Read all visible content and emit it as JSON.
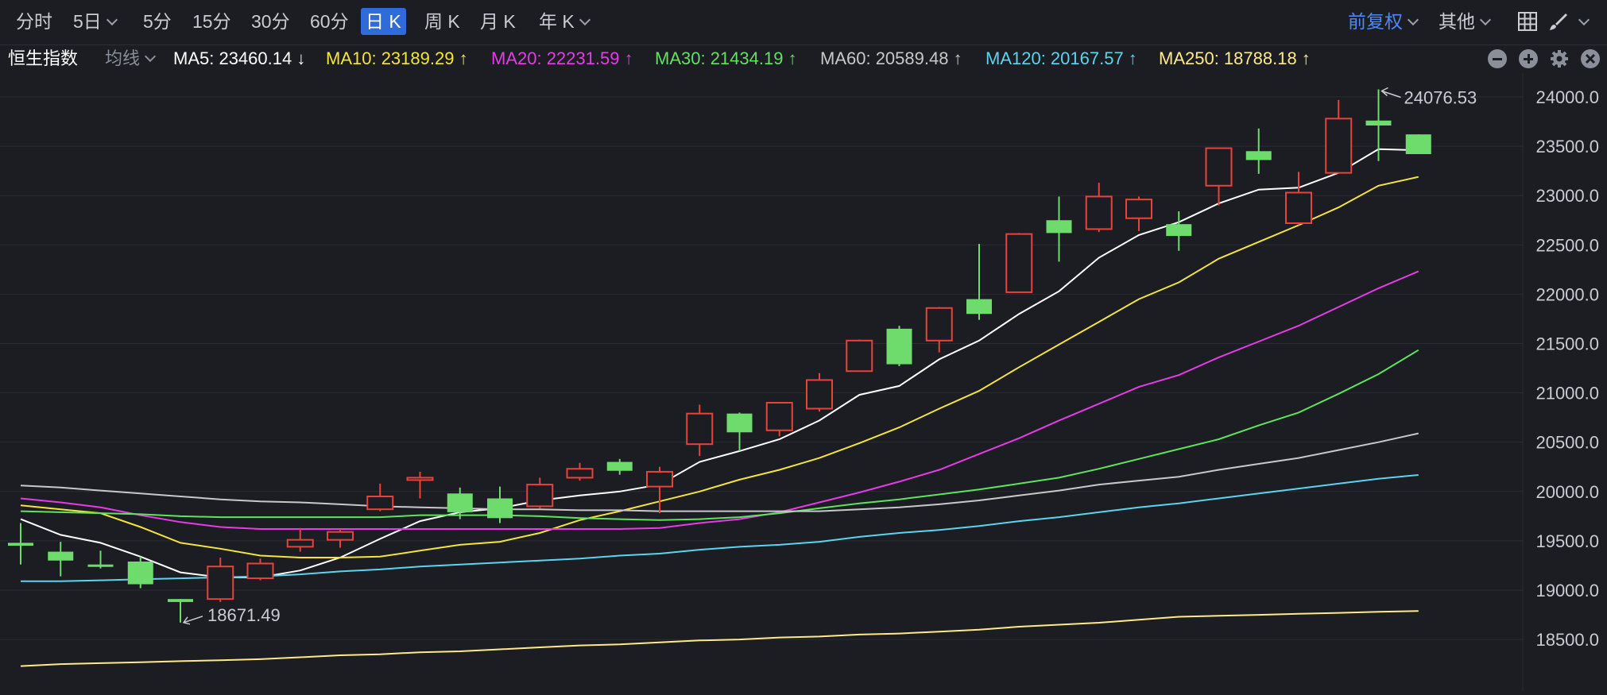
{
  "toolbar": {
    "periods": [
      {
        "label": "分时",
        "active": false,
        "caret": false
      },
      {
        "label": "5日",
        "active": false,
        "caret": true
      },
      {
        "label": "5分",
        "active": false,
        "caret": false
      },
      {
        "label": "15分",
        "active": false,
        "caret": false
      },
      {
        "label": "30分",
        "active": false,
        "caret": false
      },
      {
        "label": "60分",
        "active": false,
        "caret": false
      },
      {
        "label": "日 K",
        "active": true,
        "caret": false
      },
      {
        "label": "周 K",
        "active": false,
        "caret": false
      },
      {
        "label": "月 K",
        "active": false,
        "caret": false
      },
      {
        "label": "年 K",
        "active": false,
        "caret": true
      }
    ],
    "adjust_label": "前复权",
    "other_label": "其他"
  },
  "indicator_bar": {
    "symbol": "恒生指数",
    "ma_selector": "均线",
    "ma_items": [
      {
        "label": "MA5: 23460.14 ↓",
        "color": "#ffffff"
      },
      {
        "label": "MA10: 23189.29 ↑",
        "color": "#f5e43b"
      },
      {
        "label": "MA20: 22231.59 ↑",
        "color": "#e63be6"
      },
      {
        "label": "MA30: 21434.19 ↑",
        "color": "#5fe35f"
      },
      {
        "label": "MA60: 20589.48 ↑",
        "color": "#c8c8c8"
      },
      {
        "label": "MA120: 20167.57 ↑",
        "color": "#5cd4f0"
      },
      {
        "label": "MA250: 18788.18 ↑",
        "color": "#ffe98a"
      }
    ]
  },
  "colors": {
    "up": "#e8423a",
    "down": "#6ddc6d",
    "active": "#2f6bd9",
    "accent": "#4d87ff"
  },
  "chart_data": {
    "type": "candlestick",
    "y_ticks": [
      "24000.0",
      "23500.0",
      "23000.0",
      "22500.0",
      "22000.0",
      "21500.0",
      "21000.0",
      "20500.0",
      "20000.0",
      "19500.0",
      "19000.0",
      "18500.0"
    ],
    "ylim": [
      18230,
      24370
    ],
    "grid": true,
    "high_label": "24076.53",
    "low_label": "18671.49",
    "candles": [
      {
        "o": 19480,
        "h": 19680,
        "l": 19260,
        "c": 19450
      },
      {
        "o": 19390,
        "h": 19490,
        "l": 19140,
        "c": 19300
      },
      {
        "o": 19260,
        "h": 19400,
        "l": 19220,
        "c": 19250
      },
      {
        "o": 19290,
        "h": 19340,
        "l": 19020,
        "c": 19060
      },
      {
        "o": 18910,
        "h": 18910,
        "l": 18671.49,
        "c": 18880
      },
      {
        "o": 18910,
        "h": 19330,
        "l": 18880,
        "c": 19240
      },
      {
        "o": 19120,
        "h": 19320,
        "l": 19100,
        "c": 19270
      },
      {
        "o": 19440,
        "h": 19630,
        "l": 19390,
        "c": 19510
      },
      {
        "o": 19510,
        "h": 19620,
        "l": 19430,
        "c": 19590
      },
      {
        "o": 19820,
        "h": 20080,
        "l": 19800,
        "c": 19950
      },
      {
        "o": 20140,
        "h": 20200,
        "l": 19930,
        "c": 20140
      },
      {
        "o": 19980,
        "h": 20040,
        "l": 19720,
        "c": 19790
      },
      {
        "o": 19930,
        "h": 20050,
        "l": 19680,
        "c": 19730
      },
      {
        "o": 19850,
        "h": 20140,
        "l": 19830,
        "c": 20070
      },
      {
        "o": 20140,
        "h": 20290,
        "l": 20110,
        "c": 20230
      },
      {
        "o": 20300,
        "h": 20330,
        "l": 20170,
        "c": 20210
      },
      {
        "o": 20050,
        "h": 20250,
        "l": 19780,
        "c": 20200
      },
      {
        "o": 20480,
        "h": 20880,
        "l": 20360,
        "c": 20790
      },
      {
        "o": 20790,
        "h": 20800,
        "l": 20410,
        "c": 20600
      },
      {
        "o": 20620,
        "h": 20900,
        "l": 20560,
        "c": 20900
      },
      {
        "o": 20840,
        "h": 21200,
        "l": 20810,
        "c": 21130
      },
      {
        "o": 21220,
        "h": 21540,
        "l": 21220,
        "c": 21530
      },
      {
        "o": 21650,
        "h": 21680,
        "l": 21270,
        "c": 21290
      },
      {
        "o": 21530,
        "h": 21870,
        "l": 21410,
        "c": 21860
      },
      {
        "o": 21950,
        "h": 22510,
        "l": 21740,
        "c": 21800
      },
      {
        "o": 22020,
        "h": 22620,
        "l": 22020,
        "c": 22610
      },
      {
        "o": 22750,
        "h": 22990,
        "l": 22330,
        "c": 22620
      },
      {
        "o": 22660,
        "h": 23130,
        "l": 22630,
        "c": 22990
      },
      {
        "o": 22770,
        "h": 22990,
        "l": 22640,
        "c": 22960
      },
      {
        "o": 22710,
        "h": 22840,
        "l": 22440,
        "c": 22590
      },
      {
        "o": 23100,
        "h": 23480,
        "l": 22900,
        "c": 23480
      },
      {
        "o": 23450,
        "h": 23680,
        "l": 23220,
        "c": 23360
      },
      {
        "o": 22720,
        "h": 23240,
        "l": 22700,
        "c": 23030
      },
      {
        "o": 23230,
        "h": 23970,
        "l": 23220,
        "c": 23780
      },
      {
        "o": 23760,
        "h": 24076.53,
        "l": 23350,
        "c": 23710
      },
      {
        "o": 23620,
        "h": 23620,
        "l": 23420,
        "c": 23420
      }
    ],
    "ma_lines": [
      {
        "name": "MA5",
        "color": "#ffffff",
        "start": 0,
        "values": [
          19720,
          19560,
          19480,
          19340,
          19180,
          19130,
          19130,
          19200,
          19330,
          19520,
          19700,
          19790,
          19830,
          19910,
          19960,
          20000,
          20070,
          20300,
          20410,
          20530,
          20720,
          20980,
          21070,
          21340,
          21530,
          21800,
          22030,
          22370,
          22600,
          22730,
          22920,
          23060,
          23080,
          23230,
          23470,
          23460.14
        ]
      },
      {
        "name": "MA10",
        "color": "#f5e43b",
        "start": 0,
        "values": [
          19860,
          19820,
          19780,
          19640,
          19480,
          19420,
          19350,
          19330,
          19330,
          19340,
          19400,
          19460,
          19490,
          19580,
          19710,
          19800,
          19900,
          20000,
          20120,
          20220,
          20340,
          20490,
          20650,
          20840,
          21020,
          21260,
          21490,
          21720,
          21950,
          22120,
          22360,
          22530,
          22700,
          22880,
          23100,
          23189.29
        ]
      },
      {
        "name": "MA20",
        "color": "#e63be6",
        "start": 0,
        "values": [
          19930,
          19890,
          19840,
          19760,
          19690,
          19640,
          19620,
          19620,
          19620,
          19620,
          19620,
          19620,
          19620,
          19620,
          19620,
          19620,
          19630,
          19680,
          19720,
          19790,
          19890,
          19990,
          20100,
          20220,
          20380,
          20540,
          20720,
          20890,
          21060,
          21180,
          21360,
          21520,
          21680,
          21870,
          22060,
          22231.59
        ]
      },
      {
        "name": "MA30",
        "color": "#5fe35f",
        "start": 0,
        "values": [
          19800,
          19790,
          19780,
          19770,
          19750,
          19740,
          19740,
          19740,
          19740,
          19740,
          19760,
          19760,
          19760,
          19750,
          19730,
          19720,
          19710,
          19720,
          19740,
          19780,
          19830,
          19880,
          19920,
          19970,
          20020,
          20080,
          20140,
          20230,
          20330,
          20430,
          20530,
          20670,
          20800,
          20990,
          21190,
          21434.19
        ]
      },
      {
        "name": "MA60",
        "color": "#c8c8c8",
        "start": 0,
        "values": [
          20060,
          20040,
          20010,
          19980,
          19950,
          19920,
          19900,
          19890,
          19870,
          19850,
          19840,
          19830,
          19820,
          19820,
          19810,
          19810,
          19800,
          19800,
          19800,
          19800,
          19800,
          19820,
          19840,
          19870,
          19910,
          19960,
          20010,
          20070,
          20110,
          20150,
          20220,
          20280,
          20340,
          20420,
          20500,
          20589.48
        ]
      },
      {
        "name": "MA120",
        "color": "#5cd4f0",
        "start": 0,
        "values": [
          19090,
          19090,
          19100,
          19110,
          19120,
          19130,
          19140,
          19160,
          19190,
          19210,
          19240,
          19260,
          19280,
          19300,
          19320,
          19350,
          19370,
          19410,
          19440,
          19460,
          19490,
          19540,
          19580,
          19610,
          19650,
          19700,
          19740,
          19790,
          19840,
          19880,
          19930,
          19980,
          20030,
          20080,
          20130,
          20167.57
        ]
      },
      {
        "name": "MA250",
        "color": "#ffe98a",
        "start": 0,
        "values": [
          18230,
          18250,
          18260,
          18270,
          18280,
          18290,
          18300,
          18320,
          18340,
          18350,
          18370,
          18380,
          18400,
          18420,
          18440,
          18450,
          18470,
          18490,
          18500,
          18520,
          18530,
          18550,
          18560,
          18580,
          18600,
          18630,
          18650,
          18670,
          18700,
          18730,
          18740,
          18750,
          18760,
          18770,
          18780,
          18788.18
        ]
      }
    ]
  }
}
